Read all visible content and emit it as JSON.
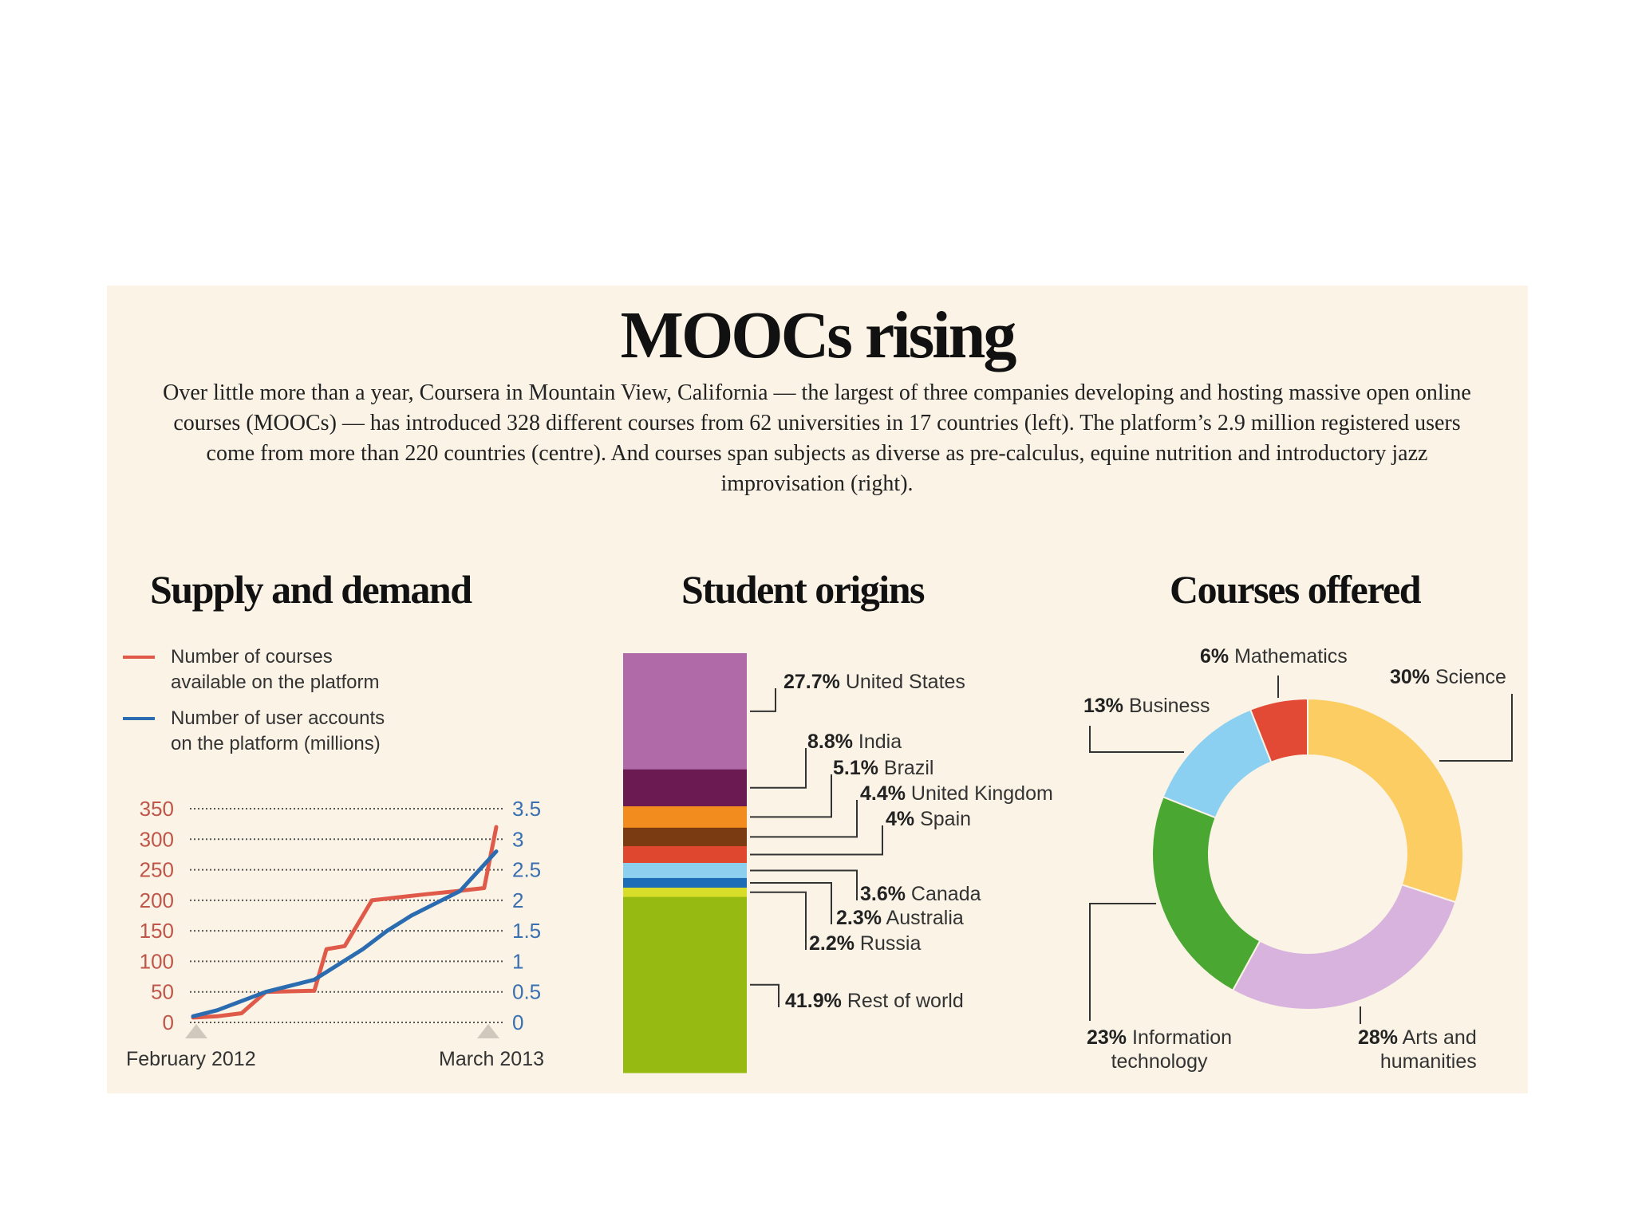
{
  "title": "MOOCs rising",
  "intro": "Over little more than a year, Coursera in Mountain View, California — the largest of three companies developing and hosting massive open online courses (MOOCs) — has introduced 328 different courses from 62 universities in 17 countries (left). The platform’s 2.9 million registered users come from more than 220 countries (centre). And courses span subjects as diverse as pre-calculus, equine nutrition and introductory jazz improvisation (right).",
  "colors": {
    "courses": "#e05a4a",
    "users": "#2b6cb0"
  },
  "chart_data": [
    {
      "type": "line",
      "title": "Supply and demand",
      "x_start_label": "February 2012",
      "x_end_label": "March 2013",
      "legend": [
        {
          "name": "Number of courses available on the platform",
          "line1": "Number of courses",
          "line2": "available on the platform",
          "color": "#e05a4a"
        },
        {
          "name": "Number of user accounts on the platform (millions)",
          "line1": "Number of user accounts",
          "line2": "on the platform (millions)",
          "color": "#2b6cb0"
        }
      ],
      "left_axis": {
        "ticks": [
          "350",
          "300",
          "250",
          "200",
          "150",
          "100",
          "50",
          "0"
        ],
        "ylim": [
          0,
          350
        ]
      },
      "right_axis": {
        "ticks": [
          "3.5",
          "3",
          "2.5",
          "2",
          "1.5",
          "1",
          "0.5",
          "0"
        ],
        "ylim": [
          0,
          3.5
        ]
      },
      "series": [
        {
          "name": "Number of courses",
          "axis": "left",
          "x": [
            0,
            0.08,
            0.16,
            0.24,
            0.4,
            0.44,
            0.5,
            0.59,
            0.68,
            0.77,
            0.87,
            0.96,
            1.0
          ],
          "values": [
            8,
            10,
            15,
            50,
            52,
            120,
            125,
            200,
            205,
            210,
            215,
            220,
            320
          ]
        },
        {
          "name": "Number of user accounts (millions)",
          "axis": "right",
          "x": [
            0,
            0.08,
            0.16,
            0.24,
            0.32,
            0.4,
            0.48,
            0.56,
            0.64,
            0.72,
            0.8,
            0.88,
            1.0
          ],
          "values": [
            0.1,
            0.2,
            0.35,
            0.5,
            0.6,
            0.7,
            0.95,
            1.2,
            1.5,
            1.75,
            1.95,
            2.15,
            2.8
          ]
        }
      ]
    },
    {
      "type": "bar",
      "title": "Student origins",
      "stacked": true,
      "segments": [
        {
          "pct": 27.7,
          "pct_label": "27.7%",
          "name": "United States",
          "color": "#b06aa8"
        },
        {
          "pct": 8.8,
          "pct_label": "8.8%",
          "name": "India",
          "color": "#6b1a52"
        },
        {
          "pct": 5.1,
          "pct_label": "5.1%",
          "name": "Brazil",
          "color": "#f28c1e"
        },
        {
          "pct": 4.4,
          "pct_label": "4.4%",
          "name": "United Kingdom",
          "color": "#7a3b12"
        },
        {
          "pct": 4.0,
          "pct_label": "4%",
          "name": "Spain",
          "color": "#e0472f"
        },
        {
          "pct": 3.6,
          "pct_label": "3.6%",
          "name": "Canada",
          "color": "#8ccfee"
        },
        {
          "pct": 2.3,
          "pct_label": "2.3%",
          "name": "Australia",
          "color": "#1c6db5"
        },
        {
          "pct": 2.2,
          "pct_label": "2.2%",
          "name": "Russia",
          "color": "#d8dd2a"
        },
        {
          "pct": 41.9,
          "pct_label": "41.9%",
          "name": "Rest of world",
          "color": "#97ba12"
        }
      ]
    },
    {
      "type": "pie",
      "title": "Courses offered",
      "donut": true,
      "slices": [
        {
          "pct": 30,
          "pct_label": "30%",
          "name": "Science",
          "name2": "",
          "color": "#fbcd62"
        },
        {
          "pct": 28,
          "pct_label": "28%",
          "name": "Arts and",
          "name2": "humanities",
          "color": "#d7b3de"
        },
        {
          "pct": 23,
          "pct_label": "23%",
          "name": "Information",
          "name2": "technology",
          "color": "#4aa832"
        },
        {
          "pct": 13,
          "pct_label": "13%",
          "name": "Business",
          "name2": "",
          "color": "#8bd0f0"
        },
        {
          "pct": 6,
          "pct_label": "6%",
          "name": "Mathematics",
          "name2": "",
          "color": "#e34a35"
        }
      ]
    }
  ]
}
